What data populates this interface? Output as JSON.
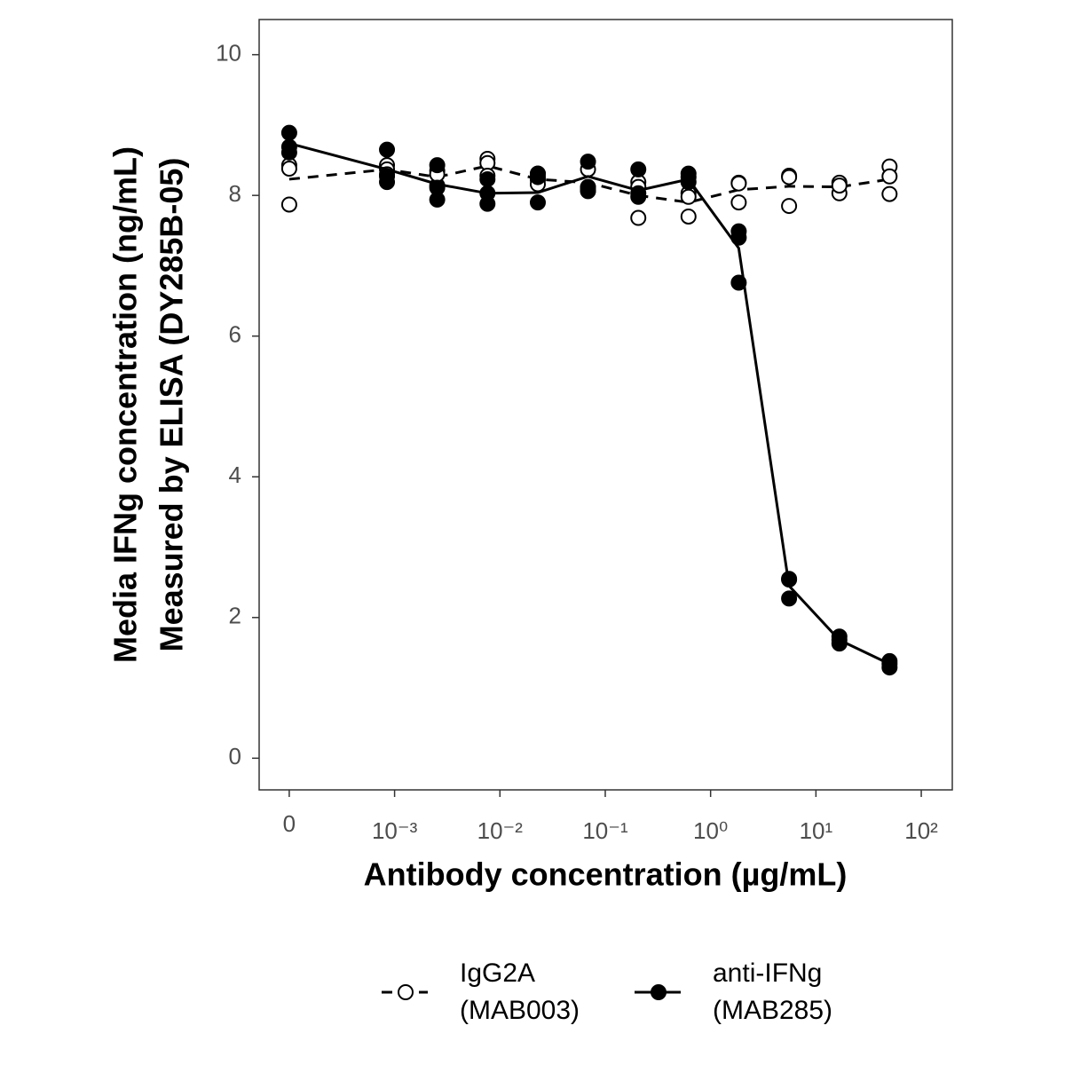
{
  "chart_data": {
    "type": "scatter-line",
    "x_label": "Antibody concentration (µg/mL)",
    "y_label": [
      "Media IFNg concentration (ng/mL)",
      "Measured by ELISA (DY285B-05)"
    ],
    "xscale": "log",
    "x": [
      0,
      0.000847,
      0.00254,
      0.00762,
      0.0229,
      0.0686,
      0.206,
      0.617,
      1.85,
      5.56,
      16.7,
      50
    ],
    "xlim": [
      5.18e-05,
      197
    ],
    "xticks": [
      0,
      {
        "value": 0.001,
        "label": "10⁻³"
      },
      {
        "value": 0.01,
        "label": "10⁻²"
      },
      {
        "value": 0.1,
        "label": "10⁻¹"
      },
      {
        "value": 1,
        "label": "10⁰"
      },
      {
        "value": 10,
        "label": "10¹"
      },
      {
        "value": 100,
        "label": "10²"
      }
    ],
    "ylim": [
      -0.45,
      10.5
    ],
    "yticks": [
      0,
      2,
      4,
      6,
      8,
      10
    ],
    "series": [
      {
        "name": "IgG2A (MAB003)",
        "color": "#000000",
        "marker": "open",
        "linestyle": "dashed",
        "values": [
          [
            8.43,
            8.38,
            7.87
          ],
          [
            8.43,
            8.37,
            8.3
          ],
          [
            8.35,
            8.14,
            8.3
          ],
          [
            8.52,
            8.46,
            8.28
          ],
          [
            8.31,
            8.22,
            8.16
          ],
          [
            8.37,
            8.11,
            8.07
          ],
          [
            8.19,
            8.12,
            7.68
          ],
          [
            8.03,
            7.7,
            7.98
          ],
          [
            8.18,
            7.9,
            8.17
          ],
          [
            8.28,
            7.85,
            8.26
          ],
          [
            8.18,
            8.03,
            8.14
          ],
          [
            8.41,
            8.27,
            8.02
          ]
        ],
        "line": [
          8.23,
          8.37,
          8.26,
          8.42,
          8.23,
          8.18,
          8.0,
          7.9,
          8.08,
          8.13,
          8.12,
          8.23
        ]
      },
      {
        "name": "anti-IFNg (MAB285)",
        "color": "#000000",
        "marker": "filled",
        "linestyle": "solid",
        "values": [
          [
            8.89,
            8.69,
            8.61
          ],
          [
            8.65,
            8.27,
            8.19
          ],
          [
            8.43,
            8.11,
            7.94
          ],
          [
            8.23,
            8.03,
            7.88
          ],
          [
            8.31,
            8.26,
            7.9
          ],
          [
            8.48,
            8.12,
            8.06
          ],
          [
            8.37,
            8.03,
            7.98
          ],
          [
            8.31,
            8.26,
            8.19
          ],
          [
            7.49,
            7.4,
            6.76
          ],
          [
            2.55,
            2.27,
            2.54
          ],
          [
            1.73,
            1.63,
            1.68
          ],
          [
            1.38,
            1.29,
            1.34
          ]
        ],
        "line": [
          8.74,
          8.37,
          8.16,
          8.03,
          8.04,
          8.27,
          8.07,
          8.23,
          7.25,
          2.45,
          1.68,
          1.34
        ]
      }
    ]
  }
}
